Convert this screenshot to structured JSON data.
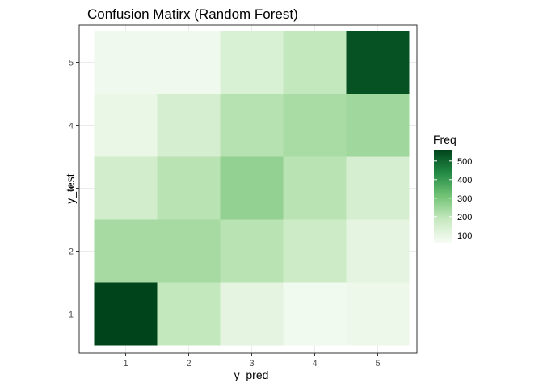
{
  "chart_data": {
    "type": "heatmap",
    "title": "Confusion Matirx (Random Forest)",
    "xlabel": "y_pred",
    "ylabel": "y_test",
    "x_categories": [
      "1",
      "2",
      "3",
      "4",
      "5"
    ],
    "y_categories": [
      "1",
      "2",
      "3",
      "4",
      "5"
    ],
    "cells": [
      {
        "x": "1",
        "y": "1",
        "value": 560
      },
      {
        "x": "2",
        "y": "1",
        "value": 190
      },
      {
        "x": "3",
        "y": "1",
        "value": 110
      },
      {
        "x": "4",
        "y": "1",
        "value": 75
      },
      {
        "x": "5",
        "y": "1",
        "value": 85
      },
      {
        "x": "1",
        "y": "2",
        "value": 235
      },
      {
        "x": "2",
        "y": "2",
        "value": 235
      },
      {
        "x": "3",
        "y": "2",
        "value": 205
      },
      {
        "x": "4",
        "y": "2",
        "value": 170
      },
      {
        "x": "5",
        "y": "2",
        "value": 110
      },
      {
        "x": "1",
        "y": "3",
        "value": 160
      },
      {
        "x": "2",
        "y": "3",
        "value": 205
      },
      {
        "x": "3",
        "y": "3",
        "value": 265
      },
      {
        "x": "4",
        "y": "3",
        "value": 205
      },
      {
        "x": "5",
        "y": "3",
        "value": 150
      },
      {
        "x": "1",
        "y": "4",
        "value": 95
      },
      {
        "x": "2",
        "y": "4",
        "value": 150
      },
      {
        "x": "3",
        "y": "4",
        "value": 210
      },
      {
        "x": "4",
        "y": "4",
        "value": 230
      },
      {
        "x": "5",
        "y": "4",
        "value": 245
      },
      {
        "x": "1",
        "y": "5",
        "value": 80
      },
      {
        "x": "2",
        "y": "5",
        "value": 80
      },
      {
        "x": "3",
        "y": "5",
        "value": 140
      },
      {
        "x": "4",
        "y": "5",
        "value": 190
      },
      {
        "x": "5",
        "y": "5",
        "value": 535
      }
    ],
    "legend": {
      "title": "Freq",
      "placement": "right",
      "ticks": [
        100,
        200,
        300,
        400,
        500
      ],
      "range": [
        60,
        560
      ]
    },
    "colors": {
      "low": "#f7fcf5",
      "mid1": "#c7e9c0",
      "mid2": "#74c476",
      "mid3": "#238b45",
      "high": "#00441b"
    },
    "grid": true
  }
}
